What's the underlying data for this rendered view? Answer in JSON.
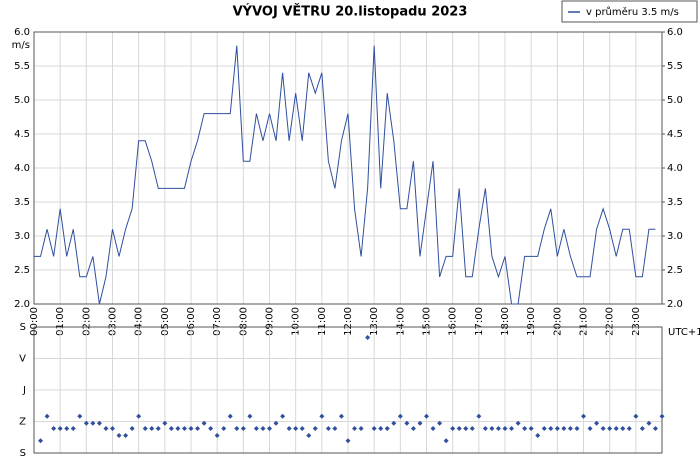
{
  "chart_data": [
    {
      "type": "line",
      "title": "VÝVOJ VĚTRU  20.listopadu 2023",
      "ylabel": "m/s",
      "xlabel": "UTC+1",
      "grid": true,
      "x": [
        0,
        0.25,
        0.5,
        0.75,
        1,
        1.25,
        1.5,
        1.75,
        2,
        2.25,
        2.5,
        2.75,
        3,
        3.25,
        3.5,
        3.75,
        4,
        4.25,
        4.5,
        4.75,
        5,
        5.25,
        5.5,
        5.75,
        6,
        6.25,
        6.5,
        6.75,
        7,
        7.25,
        7.5,
        7.75,
        8,
        8.25,
        8.5,
        8.75,
        9,
        9.25,
        9.5,
        9.75,
        10,
        10.25,
        10.5,
        10.75,
        11,
        11.25,
        11.5,
        11.75,
        12,
        12.25,
        12.5,
        12.75,
        13,
        13.25,
        13.5,
        13.75,
        14,
        14.25,
        14.5,
        14.75,
        15,
        15.25,
        15.5,
        15.75,
        16,
        16.25,
        16.5,
        16.75,
        17,
        17.25,
        17.5,
        17.75,
        18,
        18.25,
        18.5,
        18.75,
        19,
        19.25,
        19.5,
        19.75,
        20,
        20.25,
        20.5,
        20.75,
        21,
        21.25,
        21.5,
        21.75,
        22,
        22.25,
        22.5,
        22.75,
        23,
        23.25,
        23.5,
        23.75
      ],
      "series": [
        {
          "name": "v průměru 3.5 m/s",
          "color": "#2f4f9f",
          "values": [
            2.7,
            2.7,
            3.1,
            2.7,
            3.4,
            2.7,
            3.1,
            2.4,
            2.4,
            2.7,
            2.0,
            2.4,
            3.1,
            2.7,
            3.1,
            3.4,
            4.4,
            4.4,
            4.1,
            3.7,
            3.7,
            3.7,
            3.7,
            3.7,
            4.1,
            4.4,
            4.8,
            4.8,
            4.8,
            4.8,
            4.8,
            5.8,
            4.1,
            4.1,
            4.8,
            4.4,
            4.8,
            4.4,
            5.4,
            4.4,
            5.1,
            4.4,
            5.4,
            5.1,
            5.4,
            4.1,
            3.7,
            4.4,
            4.8,
            3.4,
            2.7,
            3.7,
            5.8,
            3.7,
            5.1,
            4.4,
            3.4,
            3.4,
            4.1,
            2.7,
            3.4,
            4.1,
            2.4,
            2.7,
            2.7,
            3.7,
            2.4,
            2.4,
            3.1,
            3.7,
            2.7,
            2.4,
            2.7,
            2.0,
            2.0,
            2.7,
            2.7,
            2.7,
            3.1,
            3.4,
            2.7,
            3.1,
            2.7,
            2.4,
            2.4,
            2.4,
            3.1,
            3.4,
            3.1,
            2.7,
            3.1,
            3.1,
            2.4,
            2.4,
            3.1,
            3.1
          ]
        }
      ],
      "xlim": [
        0,
        24
      ],
      "xticks": [
        {
          "value": 0,
          "label": "00:00"
        },
        {
          "value": 1,
          "label": "01:00"
        },
        {
          "value": 2,
          "label": "02:00"
        },
        {
          "value": 3,
          "label": "03:00"
        },
        {
          "value": 4,
          "label": "04:00"
        },
        {
          "value": 5,
          "label": "05:00"
        },
        {
          "value": 6,
          "label": "06:00"
        },
        {
          "value": 7,
          "label": "07:00"
        },
        {
          "value": 8,
          "label": "08:00"
        },
        {
          "value": 9,
          "label": "09:00"
        },
        {
          "value": 10,
          "label": "10:00"
        },
        {
          "value": 11,
          "label": "11:00"
        },
        {
          "value": 12,
          "label": "12:00"
        },
        {
          "value": 13,
          "label": "13:00"
        },
        {
          "value": 14,
          "label": "14:00"
        },
        {
          "value": 15,
          "label": "15:00"
        },
        {
          "value": 16,
          "label": "16:00"
        },
        {
          "value": 17,
          "label": "17:00"
        },
        {
          "value": 18,
          "label": "18:00"
        },
        {
          "value": 19,
          "label": "19:00"
        },
        {
          "value": 20,
          "label": "20:00"
        },
        {
          "value": 21,
          "label": "21:00"
        },
        {
          "value": 22,
          "label": "22:00"
        },
        {
          "value": 23,
          "label": "23:00"
        }
      ],
      "ylim": [
        2,
        6
      ],
      "yticks": [
        {
          "value": 6,
          "label": "6.0"
        },
        {
          "value": 5.5,
          "label": "5.5"
        },
        {
          "value": 5,
          "label": "5.0"
        },
        {
          "value": 4.5,
          "label": "4.5"
        },
        {
          "value": 4,
          "label": "4.0"
        },
        {
          "value": 3.5,
          "label": "3.5"
        },
        {
          "value": 3,
          "label": "3.0"
        },
        {
          "value": 2.5,
          "label": "2.5"
        },
        {
          "value": 2,
          "label": "2.0"
        }
      ],
      "y2lim": [
        2,
        6
      ],
      "y2ticks": [
        {
          "value": 6,
          "label": "6.0"
        },
        {
          "value": 5.5,
          "label": "5.5"
        },
        {
          "value": 5,
          "label": "5.0"
        },
        {
          "value": 4.5,
          "label": "4.5"
        },
        {
          "value": 4,
          "label": "4.0"
        },
        {
          "value": 3.5,
          "label": "3.5"
        },
        {
          "value": 3,
          "label": "3.0"
        },
        {
          "value": 2.5,
          "label": "2.5"
        },
        {
          "value": 2,
          "label": "2.0"
        }
      ],
      "legend": "top-right"
    },
    {
      "type": "scatter",
      "color": "#2f4f9f",
      "grid": true,
      "x": [
        0.25,
        0.5,
        0.75,
        1,
        1.25,
        1.5,
        1.75,
        2,
        2.25,
        2.5,
        2.75,
        3,
        3.25,
        3.5,
        3.75,
        4,
        4.25,
        4.5,
        4.75,
        5,
        5.25,
        5.5,
        5.75,
        6,
        6.25,
        6.5,
        6.75,
        7,
        7.25,
        7.5,
        7.75,
        8,
        8.25,
        8.5,
        8.75,
        9,
        9.25,
        9.5,
        9.75,
        10,
        10.25,
        10.5,
        10.75,
        11,
        11.25,
        11.5,
        11.75,
        12,
        12.25,
        12.5,
        12.75,
        13,
        13.25,
        13.5,
        13.75,
        14,
        14.25,
        14.5,
        14.75,
        15,
        15.25,
        15.5,
        15.75,
        16,
        16.25,
        16.5,
        16.75,
        17,
        17.25,
        17.5,
        17.75,
        18,
        18.25,
        18.5,
        18.75,
        19,
        19.25,
        19.5,
        19.75,
        20,
        20.25,
        20.5,
        20.75,
        21,
        21.25,
        21.5,
        21.75,
        22,
        22.25,
        22.5,
        22.75,
        23,
        23.25,
        23.5,
        23.75,
        24
      ],
      "values": [
        325,
        255,
        290,
        290,
        290,
        290,
        255,
        275,
        275,
        275,
        290,
        290,
        310,
        310,
        290,
        255,
        290,
        290,
        290,
        275,
        290,
        290,
        290,
        290,
        290,
        275,
        290,
        310,
        290,
        255,
        290,
        290,
        255,
        290,
        290,
        290,
        275,
        255,
        290,
        290,
        290,
        310,
        290,
        255,
        290,
        290,
        255,
        325,
        290,
        290,
        30,
        290,
        290,
        290,
        275,
        255,
        275,
        290,
        275,
        255,
        290,
        275,
        325,
        290,
        290,
        290,
        290,
        255,
        290,
        290,
        290,
        290,
        290,
        275,
        290,
        290,
        310,
        290,
        290,
        290,
        290,
        290,
        290,
        255,
        290,
        275,
        290,
        290,
        290,
        290,
        290,
        255,
        290,
        275,
        290,
        255
      ],
      "xlim": [
        0,
        24
      ],
      "xticks": [
        0,
        1,
        2,
        3,
        4,
        5,
        6,
        7,
        8,
        9,
        10,
        11,
        12,
        13,
        14,
        15,
        16,
        17,
        18,
        19,
        20,
        21,
        22,
        23
      ],
      "ylim": [
        0,
        360
      ],
      "yticks": [
        {
          "value": 0,
          "label": "S"
        },
        {
          "value": 90,
          "label": "V"
        },
        {
          "value": 180,
          "label": "J"
        },
        {
          "value": 270,
          "label": "Z"
        },
        {
          "value": 360,
          "label": "S"
        }
      ]
    }
  ]
}
